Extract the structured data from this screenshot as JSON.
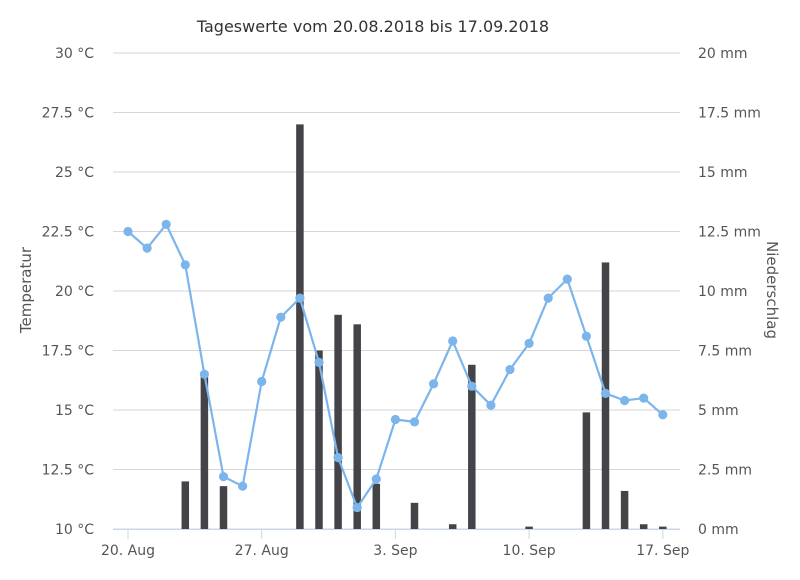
{
  "chart_data": {
    "type": "bar+line",
    "title": "Tageswerte vom 20.08.2018 bis 17.09.2018",
    "y_left": {
      "label": "Temperatur",
      "unit": "°C",
      "range": [
        10,
        30
      ],
      "ticks": [
        "10 °C",
        "12.5 °C",
        "15 °C",
        "17.5 °C",
        "20 °C",
        "22.5 °C",
        "25 °C",
        "27.5 °C",
        "30 °C"
      ]
    },
    "y_right": {
      "label": "Niederschlag",
      "unit": "mm",
      "range": [
        0,
        20
      ],
      "ticks": [
        "0 mm",
        "2.5 mm",
        "5 mm",
        "7.5 mm",
        "10 mm",
        "12.5 mm",
        "15 mm",
        "17.5 mm",
        "20 mm"
      ]
    },
    "x_ticks": [
      "20. Aug",
      "27. Aug",
      "3. Sep",
      "10. Sep",
      "17. Sep"
    ],
    "x": [
      "2018-08-20",
      "2018-08-21",
      "2018-08-22",
      "2018-08-23",
      "2018-08-24",
      "2018-08-25",
      "2018-08-26",
      "2018-08-27",
      "2018-08-28",
      "2018-08-29",
      "2018-08-30",
      "2018-08-31",
      "2018-09-01",
      "2018-09-02",
      "2018-09-03",
      "2018-09-04",
      "2018-09-05",
      "2018-09-06",
      "2018-09-07",
      "2018-09-08",
      "2018-09-09",
      "2018-09-10",
      "2018-09-11",
      "2018-09-12",
      "2018-09-13",
      "2018-09-14",
      "2018-09-15",
      "2018-09-16",
      "2018-09-17"
    ],
    "series": [
      {
        "type": "line",
        "axis": "left",
        "color": "#7cb5ec",
        "values": [
          22.5,
          21.8,
          22.8,
          21.1,
          16.5,
          12.2,
          11.8,
          16.2,
          18.9,
          19.7,
          17.0,
          13.0,
          10.9,
          12.1,
          14.6,
          14.5,
          16.1,
          17.9,
          16.0,
          15.2,
          16.7,
          17.8,
          19.7,
          20.5,
          18.1,
          15.7,
          15.4,
          15.5,
          14.8
        ]
      },
      {
        "type": "bar",
        "axis": "right",
        "color": "#434348",
        "values": [
          0,
          0,
          0,
          2.0,
          6.4,
          1.8,
          0,
          0,
          0,
          17.0,
          7.5,
          9.0,
          8.6,
          1.9,
          0,
          1.1,
          0,
          0.2,
          6.9,
          0,
          0,
          0.1,
          0,
          0,
          4.9,
          11.2,
          1.6,
          0.2,
          0.1
        ]
      }
    ],
    "grid": true,
    "legend": "none"
  }
}
